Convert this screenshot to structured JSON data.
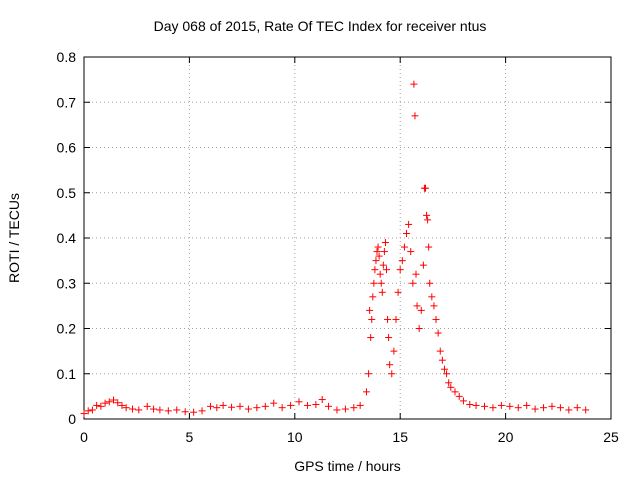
{
  "chart_data": {
    "type": "scatter",
    "title": "Day 068 of 2015, Rate Of TEC Index for receiver ntus",
    "xlabel": "GPS time / hours",
    "ylabel": "ROTI / TECUs",
    "xlim": [
      0,
      25
    ],
    "ylim": [
      0,
      0.8
    ],
    "xticks": [
      "0",
      "5",
      "10",
      "15",
      "20",
      "25"
    ],
    "yticks": [
      "0",
      "0.1",
      "0.2",
      "0.3",
      "0.4",
      "0.5",
      "0.6",
      "0.7",
      "0.8"
    ],
    "grid": true,
    "legend": "none",
    "series": [
      {
        "marker": "+",
        "color": "#ff0000",
        "points": [
          [
            0.0,
            0.012
          ],
          [
            0.2,
            0.018
          ],
          [
            0.4,
            0.02
          ],
          [
            0.6,
            0.03
          ],
          [
            0.8,
            0.028
          ],
          [
            1.0,
            0.035
          ],
          [
            1.2,
            0.038
          ],
          [
            1.4,
            0.042
          ],
          [
            1.6,
            0.036
          ],
          [
            1.8,
            0.03
          ],
          [
            2.0,
            0.025
          ],
          [
            2.3,
            0.022
          ],
          [
            2.6,
            0.02
          ],
          [
            3.0,
            0.028
          ],
          [
            3.3,
            0.022
          ],
          [
            3.6,
            0.02
          ],
          [
            4.0,
            0.018
          ],
          [
            4.4,
            0.02
          ],
          [
            4.8,
            0.016
          ],
          [
            5.2,
            0.015
          ],
          [
            5.6,
            0.018
          ],
          [
            6.0,
            0.028
          ],
          [
            6.3,
            0.025
          ],
          [
            6.6,
            0.03
          ],
          [
            7.0,
            0.026
          ],
          [
            7.4,
            0.028
          ],
          [
            7.8,
            0.022
          ],
          [
            8.2,
            0.025
          ],
          [
            8.6,
            0.028
          ],
          [
            9.0,
            0.035
          ],
          [
            9.4,
            0.025
          ],
          [
            9.8,
            0.03
          ],
          [
            10.2,
            0.038
          ],
          [
            10.6,
            0.03
          ],
          [
            11.0,
            0.032
          ],
          [
            11.3,
            0.043
          ],
          [
            11.6,
            0.028
          ],
          [
            12.0,
            0.02
          ],
          [
            12.4,
            0.022
          ],
          [
            12.8,
            0.025
          ],
          [
            13.1,
            0.03
          ],
          [
            13.4,
            0.06
          ],
          [
            13.5,
            0.1
          ],
          [
            13.55,
            0.24
          ],
          [
            13.6,
            0.18
          ],
          [
            13.65,
            0.22
          ],
          [
            13.7,
            0.27
          ],
          [
            13.75,
            0.3
          ],
          [
            13.8,
            0.33
          ],
          [
            13.85,
            0.35
          ],
          [
            13.9,
            0.37
          ],
          [
            13.95,
            0.38
          ],
          [
            14.0,
            0.36
          ],
          [
            14.05,
            0.32
          ],
          [
            14.1,
            0.3
          ],
          [
            14.15,
            0.28
          ],
          [
            14.2,
            0.34
          ],
          [
            14.25,
            0.37
          ],
          [
            14.3,
            0.39
          ],
          [
            14.35,
            0.33
          ],
          [
            14.4,
            0.22
          ],
          [
            14.45,
            0.18
          ],
          [
            14.5,
            0.12
          ],
          [
            14.6,
            0.1
          ],
          [
            14.7,
            0.15
          ],
          [
            14.8,
            0.22
          ],
          [
            14.9,
            0.28
          ],
          [
            15.0,
            0.33
          ],
          [
            15.1,
            0.35
          ],
          [
            15.2,
            0.38
          ],
          [
            15.3,
            0.41
          ],
          [
            15.4,
            0.43
          ],
          [
            15.5,
            0.37
          ],
          [
            15.6,
            0.3
          ],
          [
            15.65,
            0.74
          ],
          [
            15.7,
            0.67
          ],
          [
            15.75,
            0.32
          ],
          [
            15.8,
            0.25
          ],
          [
            15.9,
            0.2
          ],
          [
            16.0,
            0.24
          ],
          [
            16.1,
            0.34
          ],
          [
            16.15,
            0.51
          ],
          [
            16.2,
            0.51
          ],
          [
            16.25,
            0.45
          ],
          [
            16.3,
            0.44
          ],
          [
            16.35,
            0.38
          ],
          [
            16.4,
            0.3
          ],
          [
            16.5,
            0.27
          ],
          [
            16.6,
            0.25
          ],
          [
            16.7,
            0.22
          ],
          [
            16.8,
            0.19
          ],
          [
            16.9,
            0.15
          ],
          [
            17.0,
            0.13
          ],
          [
            17.1,
            0.11
          ],
          [
            17.2,
            0.1
          ],
          [
            17.3,
            0.08
          ],
          [
            17.4,
            0.07
          ],
          [
            17.6,
            0.06
          ],
          [
            17.8,
            0.05
          ],
          [
            18.0,
            0.04
          ],
          [
            18.3,
            0.032
          ],
          [
            18.6,
            0.03
          ],
          [
            19.0,
            0.028
          ],
          [
            19.4,
            0.025
          ],
          [
            19.8,
            0.03
          ],
          [
            20.2,
            0.028
          ],
          [
            20.6,
            0.025
          ],
          [
            21.0,
            0.03
          ],
          [
            21.4,
            0.022
          ],
          [
            21.8,
            0.025
          ],
          [
            22.2,
            0.028
          ],
          [
            22.6,
            0.025
          ],
          [
            23.0,
            0.02
          ],
          [
            23.4,
            0.025
          ],
          [
            23.8,
            0.02
          ]
        ]
      }
    ]
  }
}
